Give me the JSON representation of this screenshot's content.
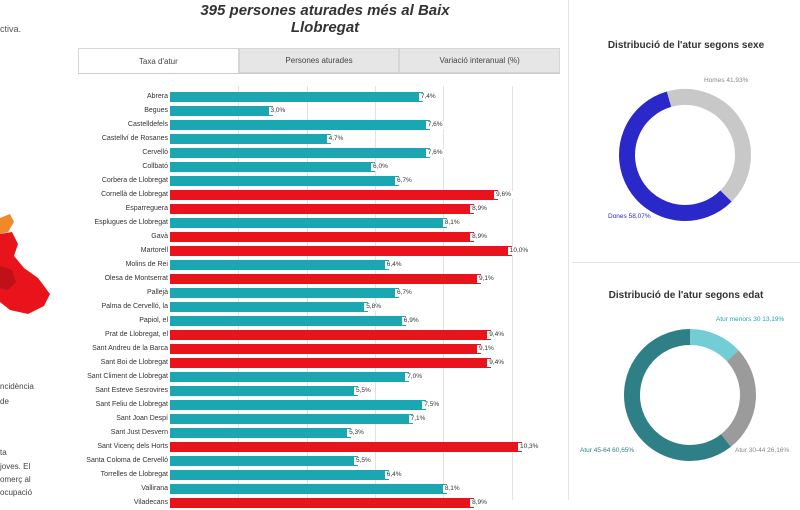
{
  "header": {
    "title": "395 persones aturades més al Baix Llobregat"
  },
  "left_panel": {
    "note": "ctiva.",
    "text_fragments": [
      "ncidència",
      "de",
      "",
      "ta",
      "joves. El",
      "omerç al",
      "ocupació"
    ]
  },
  "tabs": [
    {
      "label": "Taxa d'atur",
      "active": true
    },
    {
      "label": "Persones aturades",
      "active": false
    },
    {
      "label": "Variació interanual (%)",
      "active": false
    }
  ],
  "colors": {
    "teal": "#1aa7b2",
    "red": "#e8131b",
    "blue_dark": "#2b28c9",
    "grey": "#c8c8c8",
    "teal_dark": "#2f7f87",
    "teal_light": "#73cdd6",
    "grey_mid": "#9b9b9b"
  },
  "chart_data": [
    {
      "type": "bar",
      "orientation": "horizontal",
      "title": "Taxa d'atur",
      "xlim": [
        0,
        10.3
      ],
      "categories": [
        "Abrera",
        "Begues",
        "Castelldefels",
        "Castellví de Rosanes",
        "Cervelló",
        "Collbató",
        "Corbera de Llobregat",
        "Cornellà de Llobregat",
        "Esparreguera",
        "Esplugues de Llobregat",
        "Gavà",
        "Martorell",
        "Molins de Rei",
        "Olesa de Montserrat",
        "Pallejà",
        "Palma de Cervelló, la",
        "Papiol, el",
        "Prat de Llobregat, el",
        "Sant Andreu de la Barca",
        "Sant Boi de Llobregat",
        "Sant Climent de Llobregat",
        "Sant Esteve Sesrovires",
        "Sant Feliu de Llobregat",
        "Sant Joan Despí",
        "Sant Just Desvern",
        "Sant Vicenç dels Horts",
        "Santa Coloma de Cervelló",
        "Torrelles de Llobregat",
        "Vallirana",
        "Viladecans"
      ],
      "values": [
        7.4,
        3.0,
        7.6,
        4.7,
        7.6,
        6.0,
        6.7,
        9.6,
        8.9,
        8.1,
        8.9,
        10.0,
        6.4,
        9.1,
        6.7,
        5.8,
        6.9,
        9.4,
        9.1,
        9.4,
        7.0,
        5.5,
        7.5,
        7.1,
        5.3,
        10.3,
        5.5,
        6.4,
        8.1,
        8.9
      ],
      "labels": [
        "7,4%",
        "3,0%",
        "7,6%",
        "4,7%",
        "7,6%",
        "6,0%",
        "6,7%",
        "9,6%",
        "8,9%",
        "8,1%",
        "8,9%",
        "10,0%",
        "6,4%",
        "9,1%",
        "6,7%",
        "5,8%",
        "6,9%",
        "9,4%",
        "9,1%",
        "9,4%",
        "7,0%",
        "5,5%",
        "7,5%",
        "7,1%",
        "5,3%",
        "10,3%",
        "5,5%",
        "6,4%",
        "8,1%",
        "8,9%"
      ],
      "highlight": [
        false,
        false,
        false,
        false,
        false,
        false,
        false,
        true,
        true,
        false,
        true,
        true,
        false,
        true,
        false,
        false,
        false,
        true,
        true,
        true,
        false,
        false,
        false,
        false,
        false,
        true,
        false,
        false,
        false,
        true
      ]
    },
    {
      "type": "pie",
      "donut": true,
      "title": "Distribució de l'atur segons sexe",
      "categories": [
        "Dones",
        "Homes"
      ],
      "values": [
        58.07,
        41.93
      ],
      "labels": [
        "Dones 58,07%",
        "Homes 41,93%"
      ]
    },
    {
      "type": "pie",
      "donut": true,
      "title": "Distribució de l'atur segons edat",
      "categories": [
        "Atur menors 30",
        "Atur 30-44",
        "Atur 45-64"
      ],
      "values": [
        13.19,
        26.16,
        60.65
      ],
      "labels": [
        "Atur menors 30 13,19%",
        "Atur 30-44 26,16%",
        "Atur 45-64 60,65%"
      ]
    }
  ]
}
